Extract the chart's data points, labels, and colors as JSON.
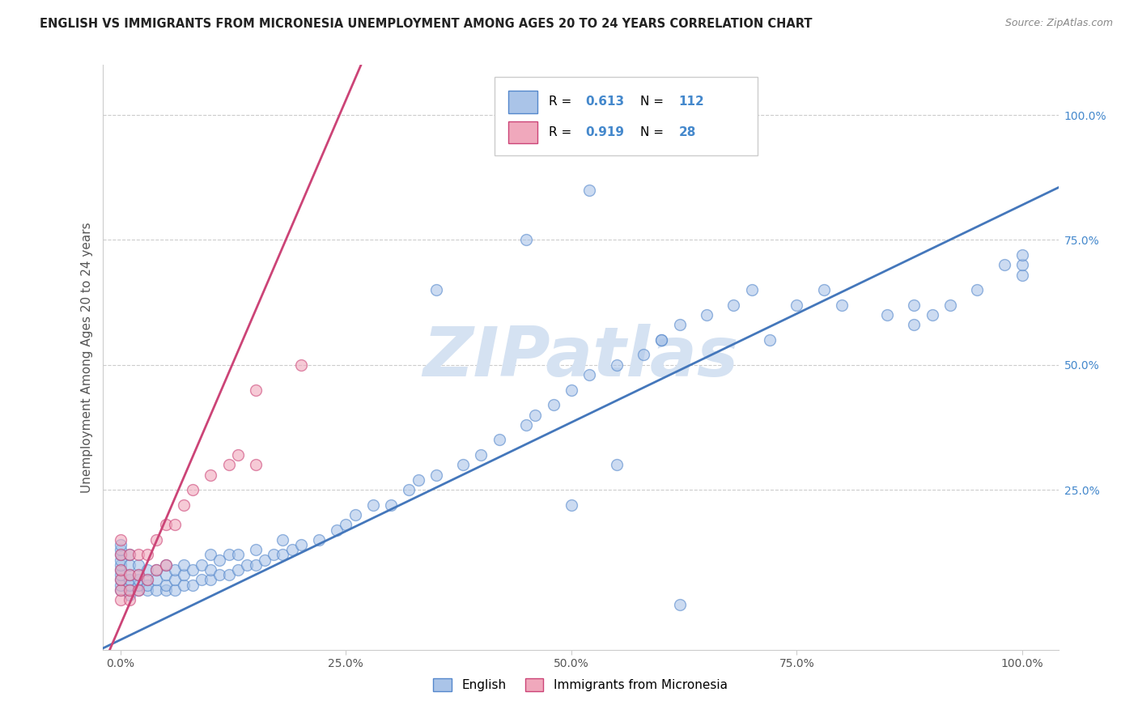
{
  "title": "ENGLISH VS IMMIGRANTS FROM MICRONESIA UNEMPLOYMENT AMONG AGES 20 TO 24 YEARS CORRELATION CHART",
  "source": "Source: ZipAtlas.com",
  "ylabel": "Unemployment Among Ages 20 to 24 years",
  "xlim": [
    -0.02,
    1.04
  ],
  "ylim": [
    -0.07,
    1.1
  ],
  "xtick_positions": [
    0.0,
    0.25,
    0.5,
    0.75,
    1.0
  ],
  "ytick_positions": [
    0.0,
    0.25,
    0.5,
    0.75,
    1.0
  ],
  "xtick_labels": [
    "0.0%",
    "25.0%",
    "50.0%",
    "75.0%",
    "100.0%"
  ],
  "ytick_labels": [
    "",
    "25.0%",
    "50.0%",
    "75.0%",
    "100.0%"
  ],
  "english_face_color": "#aac4e8",
  "english_edge_color": "#5588cc",
  "micronesia_face_color": "#f0a8bc",
  "micronesia_edge_color": "#cc4477",
  "english_line_color": "#4477bb",
  "micronesia_line_color": "#cc4477",
  "watermark_color": "#d5e2f2",
  "R_english": 0.613,
  "N_english": 112,
  "R_micronesia": 0.919,
  "N_micronesia": 28,
  "legend_label_english": "English",
  "legend_label_micronesia": "Immigrants from Micronesia",
  "stat_color": "#4488cc",
  "grid_color": "#cccccc",
  "bg_color": "#ffffff",
  "title_fontsize": 10.5,
  "ylabel_fontsize": 11,
  "tick_fontsize": 10,
  "legend_fontsize": 11,
  "marker_size": 100
}
